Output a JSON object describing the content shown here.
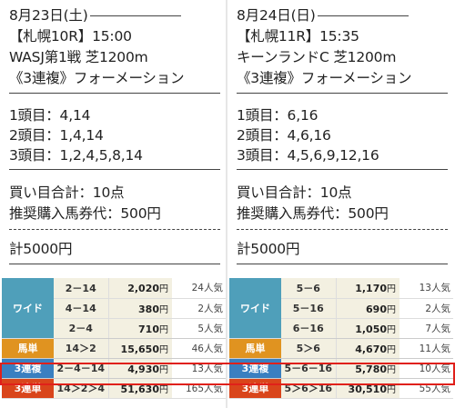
{
  "left": {
    "date": "8月23日(土)",
    "race": "【札幌10R】15:00",
    "race_name": "WASJ第1戦 芝1200m",
    "bet_type": "《3連複》フォーメーション",
    "pick1": "1頭目：4,14",
    "pick2": "2頭目：1,4,14",
    "pick3": "3頭目：1,2,4,5,8,14",
    "total_points": "買い目合計：10点",
    "unit_price": "推奨購入馬券代：500円",
    "total": "計5000円",
    "results": [
      {
        "label": "ワイド",
        "combo": "2－14",
        "payout": "2,020",
        "unit": "円",
        "pop": "24人気"
      },
      {
        "label": "",
        "combo": "4－14",
        "payout": "380",
        "unit": "円",
        "pop": "2人気"
      },
      {
        "label": "",
        "combo": "2－4",
        "payout": "710",
        "unit": "円",
        "pop": "5人気"
      },
      {
        "label": "馬単",
        "combo": "14＞2",
        "payout": "15,650",
        "unit": "円",
        "pop": "46人気"
      },
      {
        "label": "3連複",
        "combo": "2－4－14",
        "payout": "4,930",
        "unit": "円",
        "pop": "13人気"
      },
      {
        "label": "3連単",
        "combo": "14＞2＞4",
        "payout": "51,630",
        "unit": "円",
        "pop": "165人気"
      }
    ]
  },
  "right": {
    "date": "8月24日(日)",
    "race": "【札幌11R】15:35",
    "race_name": "キーンランドC 芝1200m",
    "bet_type": "《3連複》フォーメーション",
    "pick1": "1頭目：6,16",
    "pick2": "2頭目：4,6,16",
    "pick3": "3頭目：4,5,6,9,12,16",
    "total_points": "買い目合計：10点",
    "unit_price": "推奨購入馬券代：500円",
    "total": "計5000円",
    "results": [
      {
        "label": "ワイド",
        "combo": "5－6",
        "payout": "1,170",
        "unit": "円",
        "pop": "13人気"
      },
      {
        "label": "",
        "combo": "5－16",
        "payout": "690",
        "unit": "円",
        "pop": "2人気"
      },
      {
        "label": "",
        "combo": "6－16",
        "payout": "1,050",
        "unit": "円",
        "pop": "7人気"
      },
      {
        "label": "馬単",
        "combo": "5＞6",
        "payout": "4,670",
        "unit": "円",
        "pop": "11人気"
      },
      {
        "label": "3連複",
        "combo": "5－6－16",
        "payout": "5,780",
        "unit": "円",
        "pop": "10人気"
      },
      {
        "label": "3連単",
        "combo": "5＞6＞16",
        "payout": "30,510",
        "unit": "円",
        "pop": "55人気"
      }
    ]
  },
  "colors": {
    "wide": "#4f9fba",
    "umatan": "#e09320",
    "sanrenpuku": "#3a7fc0",
    "sanrentan": "#d9451b",
    "highlight": "#e0201a"
  }
}
